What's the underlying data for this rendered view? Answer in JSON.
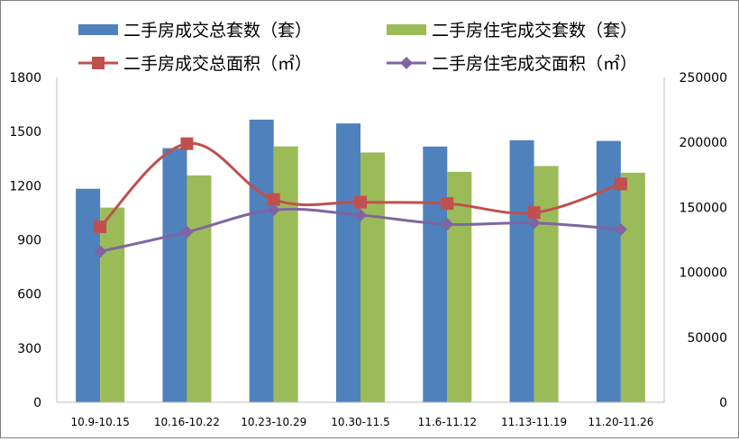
{
  "chart_data": {
    "type": "bar",
    "categories": [
      "10.9-10.15",
      "10.16-10.22",
      "10.23-10.29",
      "10.30-11.5",
      "11.6-11.12",
      "11.13-11.19",
      "11.20-11.26"
    ],
    "series": [
      {
        "name": "二手房成交总套数（套）",
        "kind": "bar",
        "axis": "left",
        "color": "#4f81bd",
        "values": [
          1183,
          1408,
          1566,
          1545,
          1417,
          1452,
          1448
        ]
      },
      {
        "name": "二手房住宅成交套数（套）",
        "kind": "bar",
        "axis": "left",
        "color": "#9bbb59",
        "values": [
          1079,
          1257,
          1418,
          1384,
          1277,
          1309,
          1272
        ]
      },
      {
        "name": "二手房成交总面积（㎡）",
        "kind": "line",
        "axis": "right",
        "color": "#c0504d",
        "marker": "square",
        "values": [
          135000,
          199000,
          156000,
          154000,
          153000,
          146000,
          168000
        ]
      },
      {
        "name": "二手房住宅成交面积（㎡）",
        "kind": "line",
        "axis": "right",
        "color": "#8064a2",
        "marker": "diamond",
        "values": [
          116000,
          131000,
          148000,
          144000,
          137000,
          138000,
          133000
        ]
      }
    ],
    "y_left": {
      "min": 0,
      "max": 1800,
      "ticks": [
        0,
        300,
        600,
        900,
        1200,
        1500,
        1800
      ]
    },
    "y_right": {
      "min": 0,
      "max": 250000,
      "ticks": [
        0,
        50000,
        100000,
        150000,
        200000,
        250000
      ]
    },
    "grid": false,
    "legend_position": "top"
  }
}
